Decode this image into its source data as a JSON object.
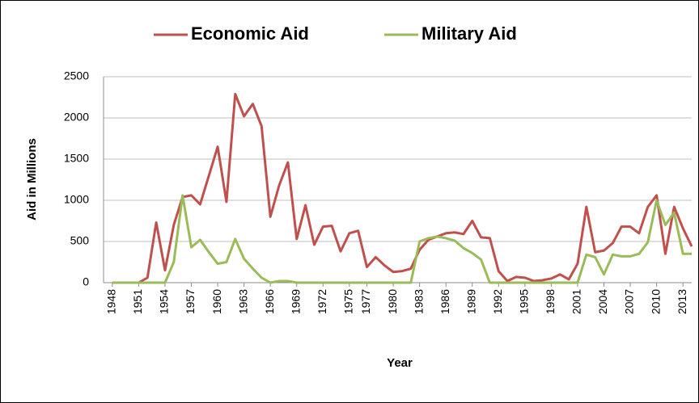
{
  "chart_data": {
    "type": "line",
    "x": [
      1948,
      1949,
      1950,
      1951,
      1952,
      1953,
      1954,
      1955,
      1956,
      1957,
      1958,
      1959,
      1960,
      1961,
      1962,
      1963,
      1964,
      1965,
      1966,
      1967,
      1968,
      1969,
      1970,
      1971,
      1972,
      1973,
      1974,
      1975,
      1976,
      1977,
      1978,
      1979,
      1980,
      1981,
      1982,
      1983,
      1984,
      1985,
      1986,
      1987,
      1988,
      1989,
      1990,
      1991,
      1992,
      1993,
      1994,
      1995,
      1996,
      1997,
      1998,
      1999,
      2000,
      2001,
      2002,
      2003,
      2004,
      2005,
      2006,
      2007,
      2008,
      2009,
      2010,
      2011,
      2012,
      2013,
      2014
    ],
    "series": [
      {
        "name": "Economic Aid",
        "color": "#c0504d",
        "values": [
          0,
          0,
          0,
          0,
          60,
          730,
          150,
          700,
          1040,
          1060,
          950,
          1300,
          1650,
          980,
          2290,
          2020,
          2170,
          1900,
          800,
          1180,
          1460,
          530,
          940,
          460,
          680,
          690,
          380,
          600,
          630,
          190,
          310,
          210,
          130,
          140,
          170,
          400,
          520,
          560,
          600,
          610,
          590,
          750,
          550,
          540,
          140,
          20,
          70,
          60,
          20,
          30,
          50,
          100,
          40,
          230,
          920,
          370,
          390,
          480,
          680,
          680,
          600,
          920,
          1060,
          350,
          920,
          660,
          440
        ]
      },
      {
        "name": "Military Aid",
        "color": "#9bbb59",
        "values": [
          0,
          0,
          0,
          0,
          0,
          0,
          0,
          250,
          1060,
          430,
          520,
          370,
          230,
          250,
          530,
          290,
          170,
          60,
          0,
          20,
          20,
          0,
          0,
          0,
          0,
          0,
          0,
          0,
          0,
          0,
          0,
          0,
          0,
          0,
          0,
          500,
          540,
          560,
          540,
          510,
          420,
          360,
          280,
          0,
          0,
          0,
          0,
          0,
          0,
          0,
          0,
          0,
          0,
          0,
          340,
          310,
          100,
          340,
          320,
          320,
          350,
          490,
          1000,
          700,
          850,
          350,
          350
        ]
      }
    ],
    "xlim": [
      1947,
      2014
    ],
    "xticks": [
      1948,
      1951,
      1954,
      1957,
      1960,
      1963,
      1966,
      1969,
      1972,
      1975,
      1977,
      1980,
      1983,
      1986,
      1989,
      1992,
      1995,
      1998,
      2001,
      2004,
      2007,
      2010,
      2013
    ],
    "ylim": [
      0,
      2500
    ],
    "yticks": [
      0,
      500,
      1000,
      1500,
      2000,
      2500
    ],
    "grid": true,
    "legend": "top",
    "x_label": "Year",
    "y_label": "Aid in Millions"
  }
}
